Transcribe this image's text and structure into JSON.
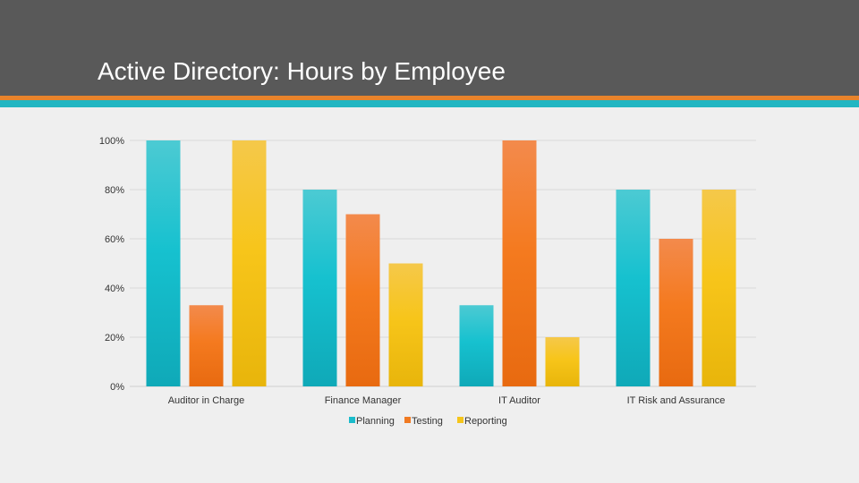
{
  "slide": {
    "title": "Active Directory: Hours by Employee"
  },
  "colors": {
    "header_bg": "#595959",
    "stripe_orange": "#e8832b",
    "stripe_teal": "#22b6c2",
    "planning": "#1bbccb",
    "testing": "#f07a22",
    "reporting": "#f5c51b"
  },
  "chart_data": {
    "type": "bar",
    "categories": [
      "Auditor in Charge",
      "Finance Manager",
      "IT Auditor",
      "IT Risk and Assurance"
    ],
    "series": [
      {
        "name": "Planning",
        "values": [
          100,
          80,
          33,
          80
        ]
      },
      {
        "name": "Testing",
        "values": [
          33,
          70,
          100,
          60
        ]
      },
      {
        "name": "Reporting",
        "values": [
          100,
          50,
          20,
          80
        ]
      }
    ],
    "yticks": [
      "0%",
      "20%",
      "40%",
      "60%",
      "80%",
      "100%"
    ],
    "ylim": [
      0,
      100
    ],
    "grid": true,
    "legend": "bottom"
  }
}
